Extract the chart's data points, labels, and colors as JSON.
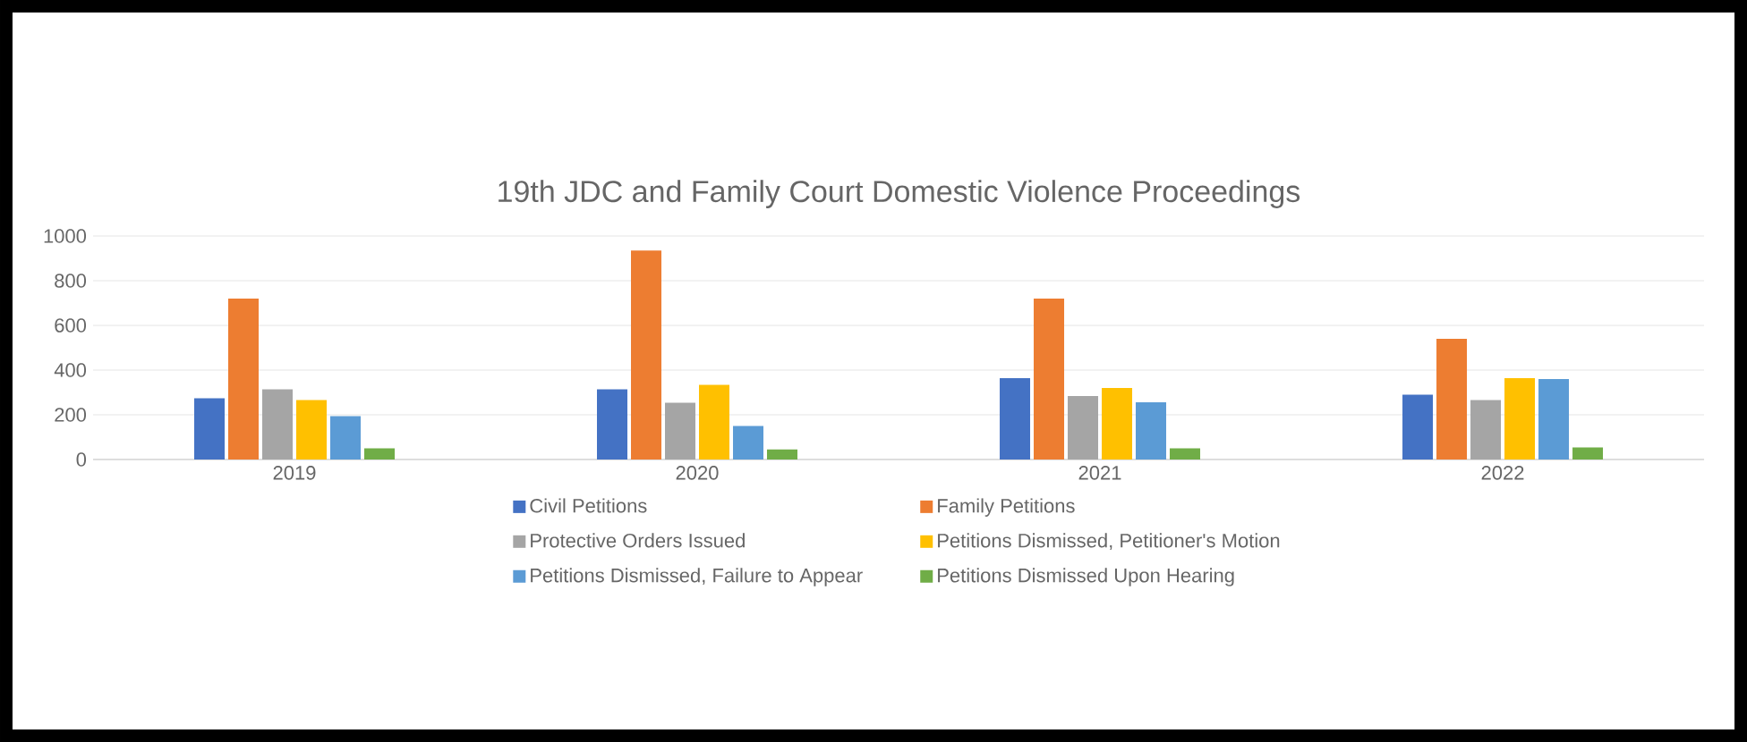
{
  "chart_data": {
    "type": "bar",
    "title": "19th JDC and Family Court Domestic Violence Proceedings",
    "categories": [
      "2019",
      "2020",
      "2021",
      "2022"
    ],
    "series": [
      {
        "name": "Civil Petitions",
        "color": "#4472c4",
        "values": [
          274,
          314,
          364,
          290
        ]
      },
      {
        "name": "Family Petitions",
        "color": "#ed7d31",
        "values": [
          720,
          935,
          720,
          540
        ]
      },
      {
        "name": "Protective Orders Issued",
        "color": "#a5a5a5",
        "values": [
          314,
          254,
          284,
          266
        ]
      },
      {
        "name": "Petitions Dismissed, Petitioner's Motion",
        "color": "#ffc000",
        "values": [
          266,
          334,
          320,
          364
        ]
      },
      {
        "name": "Petitions Dismissed, Failure to Appear",
        "color": "#5b9bd5",
        "values": [
          194,
          150,
          256,
          360
        ]
      },
      {
        "name": "Petitions Dismissed Upon Hearing",
        "color": "#70ad47",
        "values": [
          50,
          45,
          50,
          54
        ]
      }
    ],
    "ylim": [
      0,
      1000
    ],
    "yticks": [
      0,
      200,
      400,
      600,
      800,
      1000
    ],
    "grid": "y",
    "legend": "bottom"
  }
}
